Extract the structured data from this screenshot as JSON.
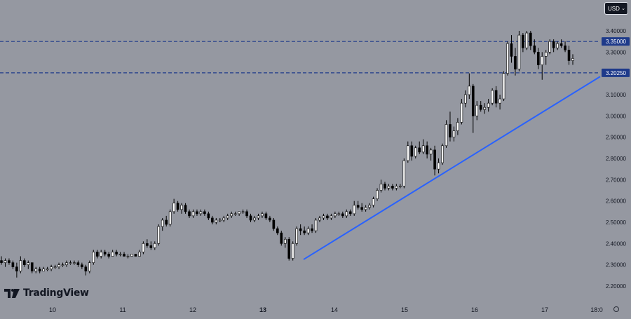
{
  "toolbar": {
    "currency_label": "USD"
  },
  "branding": {
    "logo_text": "TradingView"
  },
  "chart_data": {
    "type": "candlestick",
    "y_ticks": [
      "3.40000",
      "3.30000",
      "3.20000",
      "3.10000",
      "3.00000",
      "2.90000",
      "2.80000",
      "2.70000",
      "2.60000",
      "2.50000",
      "2.40000",
      "2.30000",
      "2.20000"
    ],
    "x_ticks": [
      "10",
      "11",
      "12",
      "13",
      "14",
      "15",
      "16",
      "17",
      "18:0"
    ],
    "ylim": [
      2.16,
      3.44
    ],
    "grid": false,
    "horizontal_lines": [
      {
        "value": 3.35,
        "label": "3.35000",
        "style": "dashed",
        "color": "#1e3a8a"
      },
      {
        "value": 3.2025,
        "label": "3.20250",
        "style": "dashed",
        "color": "#1e3a8a"
      }
    ],
    "trendline": {
      "start": {
        "x": "13 (late)",
        "y": 2.325
      },
      "end": {
        "x": "18:00",
        "y": 3.185
      },
      "color": "#2962ff"
    },
    "candles_approx": [
      {
        "o": 2.32,
        "h": 2.34,
        "l": 2.3,
        "c": 2.31
      },
      {
        "o": 2.31,
        "h": 2.33,
        "l": 2.29,
        "c": 2.32
      },
      {
        "o": 2.32,
        "h": 2.33,
        "l": 2.3,
        "c": 2.31
      },
      {
        "o": 2.31,
        "h": 2.32,
        "l": 2.28,
        "c": 2.29
      },
      {
        "o": 2.29,
        "h": 2.31,
        "l": 2.24,
        "c": 2.27
      },
      {
        "o": 2.27,
        "h": 2.34,
        "l": 2.26,
        "c": 2.32
      },
      {
        "o": 2.32,
        "h": 2.33,
        "l": 2.29,
        "c": 2.3
      },
      {
        "o": 2.3,
        "h": 2.32,
        "l": 2.28,
        "c": 2.31
      },
      {
        "o": 2.31,
        "h": 2.31,
        "l": 2.26,
        "c": 2.27
      },
      {
        "o": 2.27,
        "h": 2.29,
        "l": 2.26,
        "c": 2.28
      },
      {
        "o": 2.28,
        "h": 2.29,
        "l": 2.26,
        "c": 2.27
      },
      {
        "o": 2.27,
        "h": 2.29,
        "l": 2.27,
        "c": 2.28
      },
      {
        "o": 2.28,
        "h": 2.29,
        "l": 2.27,
        "c": 2.28
      },
      {
        "o": 2.28,
        "h": 2.3,
        "l": 2.27,
        "c": 2.29
      },
      {
        "o": 2.29,
        "h": 2.3,
        "l": 2.28,
        "c": 2.29
      },
      {
        "o": 2.29,
        "h": 2.31,
        "l": 2.28,
        "c": 2.3
      },
      {
        "o": 2.3,
        "h": 2.31,
        "l": 2.29,
        "c": 2.3
      },
      {
        "o": 2.3,
        "h": 2.32,
        "l": 2.29,
        "c": 2.31
      },
      {
        "o": 2.31,
        "h": 2.32,
        "l": 2.3,
        "c": 2.31
      },
      {
        "o": 2.31,
        "h": 2.32,
        "l": 2.3,
        "c": 2.31
      },
      {
        "o": 2.31,
        "h": 2.32,
        "l": 2.29,
        "c": 2.3
      },
      {
        "o": 2.3,
        "h": 2.31,
        "l": 2.28,
        "c": 2.29
      },
      {
        "o": 2.29,
        "h": 2.3,
        "l": 2.25,
        "c": 2.27
      },
      {
        "o": 2.27,
        "h": 2.32,
        "l": 2.26,
        "c": 2.31
      },
      {
        "o": 2.31,
        "h": 2.37,
        "l": 2.3,
        "c": 2.36
      },
      {
        "o": 2.36,
        "h": 2.37,
        "l": 2.33,
        "c": 2.34
      },
      {
        "o": 2.34,
        "h": 2.37,
        "l": 2.33,
        "c": 2.36
      },
      {
        "o": 2.36,
        "h": 2.37,
        "l": 2.34,
        "c": 2.35
      },
      {
        "o": 2.35,
        "h": 2.36,
        "l": 2.33,
        "c": 2.34
      },
      {
        "o": 2.34,
        "h": 2.37,
        "l": 2.34,
        "c": 2.36
      },
      {
        "o": 2.36,
        "h": 2.37,
        "l": 2.34,
        "c": 2.35
      },
      {
        "o": 2.35,
        "h": 2.36,
        "l": 2.34,
        "c": 2.35
      },
      {
        "o": 2.35,
        "h": 2.36,
        "l": 2.34,
        "c": 2.34
      },
      {
        "o": 2.34,
        "h": 2.35,
        "l": 2.33,
        "c": 2.34
      },
      {
        "o": 2.34,
        "h": 2.35,
        "l": 2.34,
        "c": 2.35
      },
      {
        "o": 2.35,
        "h": 2.35,
        "l": 2.34,
        "c": 2.34
      },
      {
        "o": 2.34,
        "h": 2.37,
        "l": 2.34,
        "c": 2.36
      },
      {
        "o": 2.36,
        "h": 2.41,
        "l": 2.35,
        "c": 2.4
      },
      {
        "o": 2.4,
        "h": 2.42,
        "l": 2.38,
        "c": 2.39
      },
      {
        "o": 2.39,
        "h": 2.41,
        "l": 2.37,
        "c": 2.38
      },
      {
        "o": 2.38,
        "h": 2.41,
        "l": 2.37,
        "c": 2.4
      },
      {
        "o": 2.4,
        "h": 2.49,
        "l": 2.39,
        "c": 2.48
      },
      {
        "o": 2.48,
        "h": 2.52,
        "l": 2.46,
        "c": 2.51
      },
      {
        "o": 2.51,
        "h": 2.53,
        "l": 2.48,
        "c": 2.49
      },
      {
        "o": 2.49,
        "h": 2.56,
        "l": 2.48,
        "c": 2.55
      },
      {
        "o": 2.55,
        "h": 2.61,
        "l": 2.54,
        "c": 2.59
      },
      {
        "o": 2.59,
        "h": 2.6,
        "l": 2.55,
        "c": 2.56
      },
      {
        "o": 2.56,
        "h": 2.59,
        "l": 2.54,
        "c": 2.58
      },
      {
        "o": 2.58,
        "h": 2.59,
        "l": 2.54,
        "c": 2.55
      },
      {
        "o": 2.55,
        "h": 2.56,
        "l": 2.52,
        "c": 2.53
      },
      {
        "o": 2.53,
        "h": 2.56,
        "l": 2.52,
        "c": 2.55
      },
      {
        "o": 2.55,
        "h": 2.56,
        "l": 2.53,
        "c": 2.54
      },
      {
        "o": 2.54,
        "h": 2.56,
        "l": 2.53,
        "c": 2.55
      },
      {
        "o": 2.55,
        "h": 2.56,
        "l": 2.53,
        "c": 2.54
      },
      {
        "o": 2.54,
        "h": 2.55,
        "l": 2.51,
        "c": 2.52
      },
      {
        "o": 2.52,
        "h": 2.53,
        "l": 2.49,
        "c": 2.5
      },
      {
        "o": 2.5,
        "h": 2.52,
        "l": 2.49,
        "c": 2.51
      },
      {
        "o": 2.51,
        "h": 2.52,
        "l": 2.5,
        "c": 2.51
      },
      {
        "o": 2.51,
        "h": 2.53,
        "l": 2.5,
        "c": 2.52
      },
      {
        "o": 2.52,
        "h": 2.54,
        "l": 2.51,
        "c": 2.53
      },
      {
        "o": 2.53,
        "h": 2.55,
        "l": 2.52,
        "c": 2.54
      },
      {
        "o": 2.54,
        "h": 2.55,
        "l": 2.53,
        "c": 2.54
      },
      {
        "o": 2.54,
        "h": 2.55,
        "l": 2.53,
        "c": 2.55
      },
      {
        "o": 2.55,
        "h": 2.56,
        "l": 2.54,
        "c": 2.55
      },
      {
        "o": 2.55,
        "h": 2.56,
        "l": 2.52,
        "c": 2.53
      },
      {
        "o": 2.53,
        "h": 2.54,
        "l": 2.5,
        "c": 2.51
      },
      {
        "o": 2.51,
        "h": 2.53,
        "l": 2.5,
        "c": 2.52
      },
      {
        "o": 2.52,
        "h": 2.54,
        "l": 2.51,
        "c": 2.53
      },
      {
        "o": 2.53,
        "h": 2.55,
        "l": 2.52,
        "c": 2.54
      },
      {
        "o": 2.54,
        "h": 2.55,
        "l": 2.51,
        "c": 2.52
      },
      {
        "o": 2.52,
        "h": 2.53,
        "l": 2.5,
        "c": 2.51
      },
      {
        "o": 2.51,
        "h": 2.52,
        "l": 2.46,
        "c": 2.47
      },
      {
        "o": 2.47,
        "h": 2.48,
        "l": 2.44,
        "c": 2.45
      },
      {
        "o": 2.45,
        "h": 2.46,
        "l": 2.39,
        "c": 2.4
      },
      {
        "o": 2.4,
        "h": 2.43,
        "l": 2.38,
        "c": 2.42
      },
      {
        "o": 2.42,
        "h": 2.43,
        "l": 2.32,
        "c": 2.33
      },
      {
        "o": 2.33,
        "h": 2.41,
        "l": 2.32,
        "c": 2.4
      },
      {
        "o": 2.4,
        "h": 2.48,
        "l": 2.39,
        "c": 2.47
      },
      {
        "o": 2.47,
        "h": 2.49,
        "l": 2.44,
        "c": 2.46
      },
      {
        "o": 2.46,
        "h": 2.48,
        "l": 2.44,
        "c": 2.45
      },
      {
        "o": 2.45,
        "h": 2.48,
        "l": 2.44,
        "c": 2.47
      },
      {
        "o": 2.47,
        "h": 2.49,
        "l": 2.45,
        "c": 2.46
      },
      {
        "o": 2.46,
        "h": 2.52,
        "l": 2.45,
        "c": 2.51
      },
      {
        "o": 2.51,
        "h": 2.53,
        "l": 2.5,
        "c": 2.52
      },
      {
        "o": 2.52,
        "h": 2.54,
        "l": 2.51,
        "c": 2.53
      },
      {
        "o": 2.53,
        "h": 2.54,
        "l": 2.51,
        "c": 2.52
      },
      {
        "o": 2.52,
        "h": 2.54,
        "l": 2.51,
        "c": 2.53
      },
      {
        "o": 2.53,
        "h": 2.55,
        "l": 2.52,
        "c": 2.54
      },
      {
        "o": 2.54,
        "h": 2.55,
        "l": 2.53,
        "c": 2.54
      },
      {
        "o": 2.54,
        "h": 2.55,
        "l": 2.52,
        "c": 2.53
      },
      {
        "o": 2.53,
        "h": 2.56,
        "l": 2.52,
        "c": 2.55
      },
      {
        "o": 2.55,
        "h": 2.56,
        "l": 2.53,
        "c": 2.54
      },
      {
        "o": 2.54,
        "h": 2.6,
        "l": 2.53,
        "c": 2.58
      },
      {
        "o": 2.58,
        "h": 2.6,
        "l": 2.56,
        "c": 2.57
      },
      {
        "o": 2.57,
        "h": 2.59,
        "l": 2.55,
        "c": 2.56
      },
      {
        "o": 2.56,
        "h": 2.58,
        "l": 2.55,
        "c": 2.57
      },
      {
        "o": 2.57,
        "h": 2.59,
        "l": 2.56,
        "c": 2.58
      },
      {
        "o": 2.58,
        "h": 2.62,
        "l": 2.57,
        "c": 2.61
      },
      {
        "o": 2.61,
        "h": 2.66,
        "l": 2.6,
        "c": 2.65
      },
      {
        "o": 2.65,
        "h": 2.7,
        "l": 2.64,
        "c": 2.68
      },
      {
        "o": 2.68,
        "h": 2.69,
        "l": 2.65,
        "c": 2.66
      },
      {
        "o": 2.66,
        "h": 2.68,
        "l": 2.65,
        "c": 2.67
      },
      {
        "o": 2.67,
        "h": 2.68,
        "l": 2.65,
        "c": 2.66
      },
      {
        "o": 2.66,
        "h": 2.68,
        "l": 2.65,
        "c": 2.67
      },
      {
        "o": 2.67,
        "h": 2.68,
        "l": 2.66,
        "c": 2.67
      },
      {
        "o": 2.67,
        "h": 2.8,
        "l": 2.66,
        "c": 2.79
      },
      {
        "o": 2.79,
        "h": 2.88,
        "l": 2.78,
        "c": 2.86
      },
      {
        "o": 2.86,
        "h": 2.88,
        "l": 2.79,
        "c": 2.81
      },
      {
        "o": 2.81,
        "h": 2.86,
        "l": 2.8,
        "c": 2.85
      },
      {
        "o": 2.85,
        "h": 2.88,
        "l": 2.82,
        "c": 2.83
      },
      {
        "o": 2.83,
        "h": 2.89,
        "l": 2.82,
        "c": 2.86
      },
      {
        "o": 2.86,
        "h": 2.88,
        "l": 2.8,
        "c": 2.82
      },
      {
        "o": 2.82,
        "h": 2.85,
        "l": 2.79,
        "c": 2.84
      },
      {
        "o": 2.84,
        "h": 2.86,
        "l": 2.72,
        "c": 2.75
      },
      {
        "o": 2.75,
        "h": 2.8,
        "l": 2.73,
        "c": 2.78
      },
      {
        "o": 2.78,
        "h": 2.87,
        "l": 2.77,
        "c": 2.86
      },
      {
        "o": 2.86,
        "h": 2.98,
        "l": 2.85,
        "c": 2.96
      },
      {
        "o": 2.96,
        "h": 3.02,
        "l": 2.88,
        "c": 2.9
      },
      {
        "o": 2.9,
        "h": 2.95,
        "l": 2.88,
        "c": 2.93
      },
      {
        "o": 2.93,
        "h": 2.99,
        "l": 2.91,
        "c": 2.97
      },
      {
        "o": 2.97,
        "h": 3.08,
        "l": 2.96,
        "c": 3.06
      },
      {
        "o": 3.06,
        "h": 3.12,
        "l": 3.04,
        "c": 3.1
      },
      {
        "o": 3.1,
        "h": 3.2,
        "l": 3.08,
        "c": 3.14
      },
      {
        "o": 3.14,
        "h": 3.15,
        "l": 2.92,
        "c": 3.0
      },
      {
        "o": 3.0,
        "h": 3.07,
        "l": 2.98,
        "c": 3.05
      },
      {
        "o": 3.05,
        "h": 3.07,
        "l": 3.02,
        "c": 3.03
      },
      {
        "o": 3.03,
        "h": 3.06,
        "l": 3.01,
        "c": 3.04
      },
      {
        "o": 3.04,
        "h": 3.08,
        "l": 3.02,
        "c": 3.06
      },
      {
        "o": 3.06,
        "h": 3.13,
        "l": 3.05,
        "c": 3.12
      },
      {
        "o": 3.12,
        "h": 3.14,
        "l": 3.04,
        "c": 3.06
      },
      {
        "o": 3.06,
        "h": 3.1,
        "l": 3.03,
        "c": 3.08
      },
      {
        "o": 3.08,
        "h": 3.21,
        "l": 3.07,
        "c": 3.2
      },
      {
        "o": 3.2,
        "h": 3.35,
        "l": 3.19,
        "c": 3.34
      },
      {
        "o": 3.34,
        "h": 3.38,
        "l": 3.25,
        "c": 3.28
      },
      {
        "o": 3.28,
        "h": 3.32,
        "l": 3.19,
        "c": 3.22
      },
      {
        "o": 3.22,
        "h": 3.4,
        "l": 3.21,
        "c": 3.38
      },
      {
        "o": 3.38,
        "h": 3.39,
        "l": 3.3,
        "c": 3.32
      },
      {
        "o": 3.32,
        "h": 3.4,
        "l": 3.31,
        "c": 3.39
      },
      {
        "o": 3.39,
        "h": 3.4,
        "l": 3.31,
        "c": 3.33
      },
      {
        "o": 3.33,
        "h": 3.36,
        "l": 3.29,
        "c": 3.3
      },
      {
        "o": 3.3,
        "h": 3.32,
        "l": 3.22,
        "c": 3.24
      },
      {
        "o": 3.24,
        "h": 3.3,
        "l": 3.17,
        "c": 3.28
      },
      {
        "o": 3.28,
        "h": 3.31,
        "l": 3.24,
        "c": 3.3
      },
      {
        "o": 3.3,
        "h": 3.36,
        "l": 3.29,
        "c": 3.35
      },
      {
        "o": 3.35,
        "h": 3.36,
        "l": 3.3,
        "c": 3.32
      },
      {
        "o": 3.32,
        "h": 3.35,
        "l": 3.31,
        "c": 3.34
      },
      {
        "o": 3.34,
        "h": 3.36,
        "l": 3.32,
        "c": 3.33
      },
      {
        "o": 3.33,
        "h": 3.35,
        "l": 3.3,
        "c": 3.31
      },
      {
        "o": 3.31,
        "h": 3.33,
        "l": 3.24,
        "c": 3.26
      },
      {
        "o": 3.26,
        "h": 3.29,
        "l": 3.24,
        "c": 3.27
      }
    ],
    "colors": {
      "background": "#9598a1",
      "candle_up_fill": "#ffffff",
      "candle_down_fill": "#000000",
      "candle_outline": "#000000",
      "trendline": "#2962ff",
      "level_line": "#1e3a8a",
      "level_label_bg": "#1e3a8a",
      "axis_text": "#131722"
    }
  }
}
